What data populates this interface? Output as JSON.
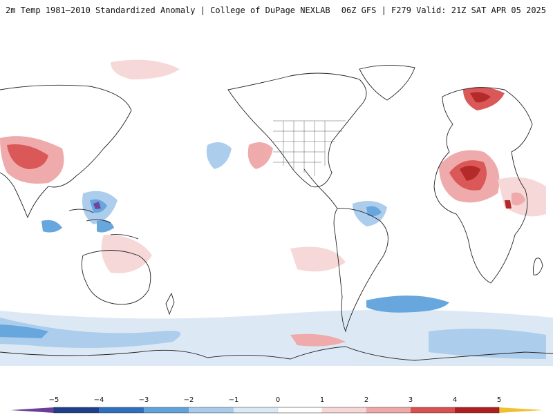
{
  "header": {
    "title_left": "2m Temp 1981–2010 Standardized Anomaly | College of DuPage NEXLAB",
    "title_right": "06Z GFS | F279 Valid: 21Z SAT APR 05 2025"
  },
  "legend": {
    "ticks": [
      "−5",
      "−4",
      "−3",
      "−2",
      "−1",
      "0",
      "1",
      "2",
      "3",
      "4",
      "5"
    ],
    "colors": {
      "lt_-5": "#6a3d9a",
      "-5_-4": "#1f3f8c",
      "-4_-3": "#2f6fc0",
      "-3_-2": "#5fa3dc",
      "-2_-1": "#a9cbeb",
      "-1_0": "#dbe8f5",
      "0_1": "#ffffff",
      "1_2": "#f6d6d6",
      "2_3": "#efa7a7",
      "3_4": "#d95050",
      "4_5": "#b01f1f",
      "gt_5": "#f0c030"
    }
  },
  "map": {
    "projection": "equirectangular",
    "warm_regions": [
      "north-africa-sahara",
      "india-himalaya",
      "scandinavia",
      "east-africa",
      "north-pacific-offshore",
      "antarctic-coast-south-america"
    ],
    "cold_regions": [
      "indonesia-maritime",
      "northwest-pacific",
      "brazil-amazon",
      "south-atlantic",
      "southern-ocean"
    ]
  }
}
